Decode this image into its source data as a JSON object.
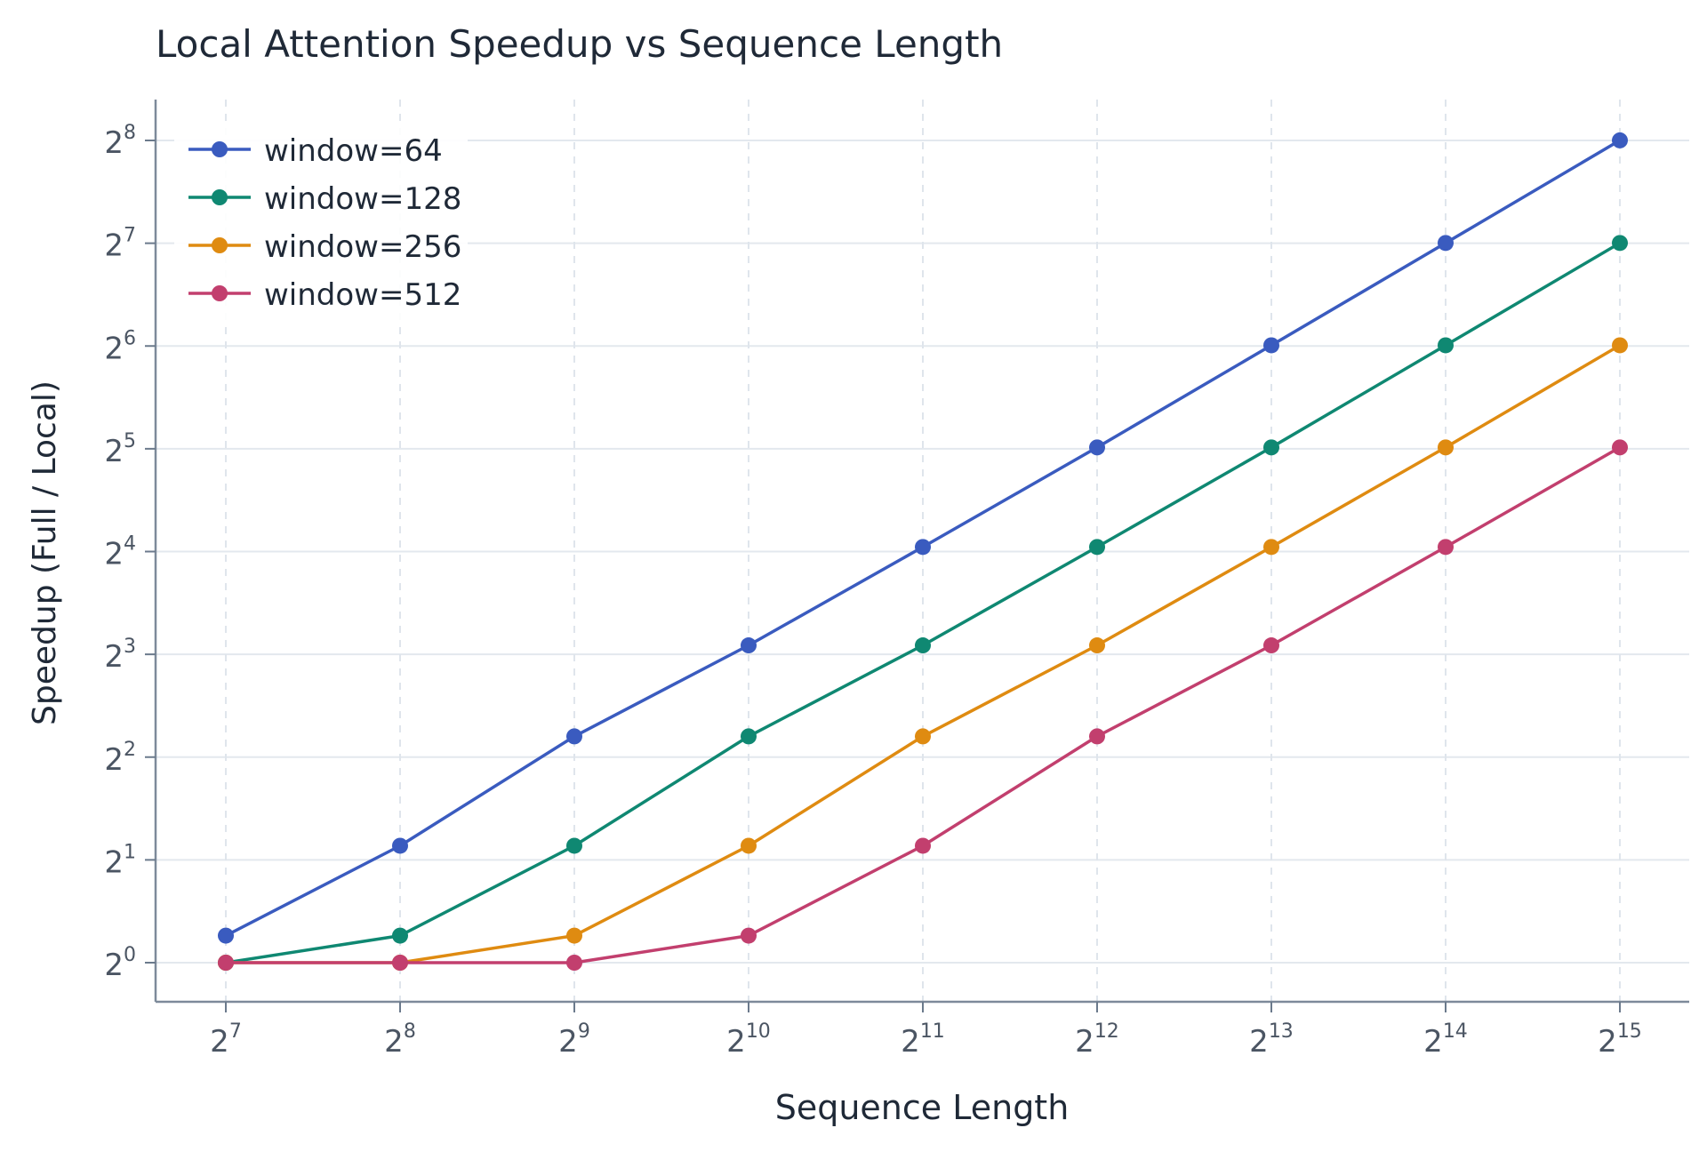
{
  "chart_data": {
    "type": "line",
    "title": "Local Attention Speedup vs Sequence Length",
    "xlabel": "Sequence Length",
    "ylabel": "Speedup (Full / Local)",
    "xscale": "log2",
    "yscale": "log2",
    "x": [
      128,
      256,
      512,
      1024,
      2048,
      4096,
      8192,
      16384,
      32768
    ],
    "x_ticks": [
      {
        "base": "2",
        "exp": "7"
      },
      {
        "base": "2",
        "exp": "8"
      },
      {
        "base": "2",
        "exp": "9"
      },
      {
        "base": "2",
        "exp": "10"
      },
      {
        "base": "2",
        "exp": "11"
      },
      {
        "base": "2",
        "exp": "12"
      },
      {
        "base": "2",
        "exp": "13"
      },
      {
        "base": "2",
        "exp": "14"
      },
      {
        "base": "2",
        "exp": "15"
      }
    ],
    "y_ticks": [
      {
        "base": "2",
        "exp": "0"
      },
      {
        "base": "2",
        "exp": "1"
      },
      {
        "base": "2",
        "exp": "2"
      },
      {
        "base": "2",
        "exp": "3"
      },
      {
        "base": "2",
        "exp": "4"
      },
      {
        "base": "2",
        "exp": "5"
      },
      {
        "base": "2",
        "exp": "6"
      },
      {
        "base": "2",
        "exp": "7"
      },
      {
        "base": "2",
        "exp": "8"
      }
    ],
    "xlim": [
      128,
      32768
    ],
    "ylim": [
      1,
      256
    ],
    "grid": true,
    "legend_position": "top-left",
    "series": [
      {
        "name": "window=64",
        "color": "#3a5bbf",
        "values": [
          1.2,
          2.2,
          4.6,
          8.5,
          16.5,
          32.3,
          64.3,
          128.2,
          256.1
        ]
      },
      {
        "name": "window=128",
        "color": "#0f8872",
        "values": [
          1.0,
          1.2,
          2.2,
          4.6,
          8.5,
          16.5,
          32.3,
          64.3,
          128.2
        ]
      },
      {
        "name": "window=256",
        "color": "#df8b11",
        "values": [
          1.0,
          1.0,
          1.2,
          2.2,
          4.6,
          8.5,
          16.5,
          32.3,
          64.3
        ]
      },
      {
        "name": "window=512",
        "color": "#c23f6e",
        "values": [
          1.0,
          1.0,
          1.0,
          1.2,
          2.2,
          4.6,
          8.5,
          16.5,
          32.3
        ]
      }
    ]
  }
}
